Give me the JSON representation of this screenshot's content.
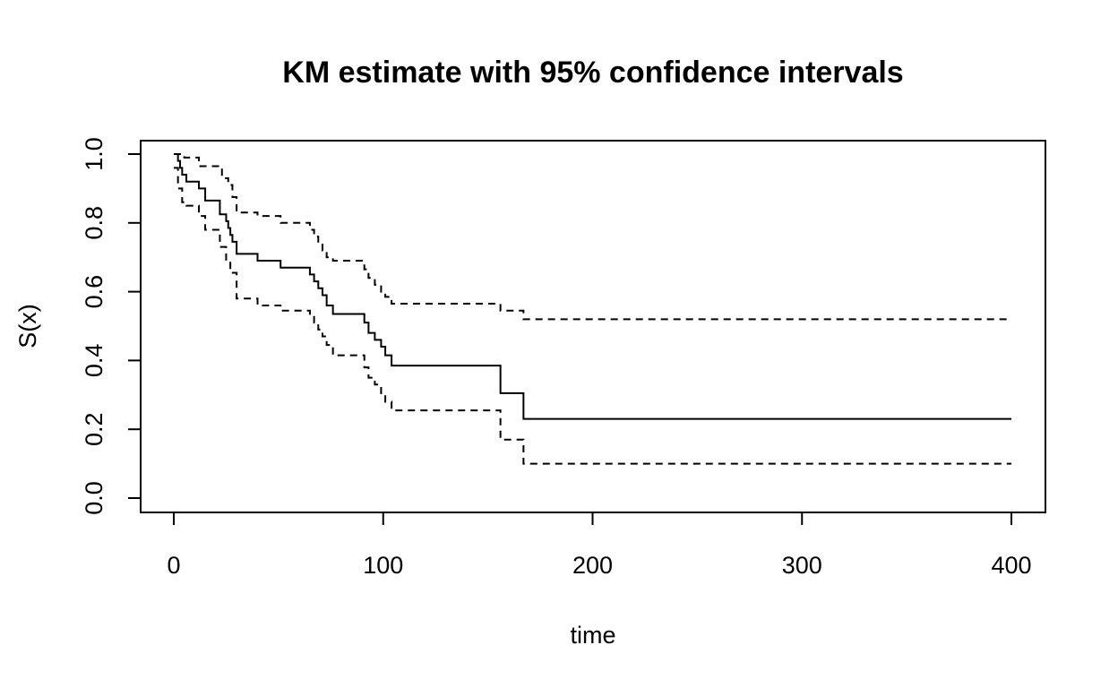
{
  "chart_data": {
    "type": "line",
    "title": "KM estimate with 95% confidence intervals",
    "xlabel": "time",
    "ylabel": "S(x)",
    "xlim": [
      0,
      400
    ],
    "ylim": [
      0,
      1
    ],
    "xticks": [
      0,
      100,
      200,
      300,
      400
    ],
    "xtick_labels": [
      "0",
      "100",
      "200",
      "300",
      "400"
    ],
    "yticks": [
      0,
      0.2,
      0.4,
      0.6,
      0.8,
      1.0
    ],
    "ytick_labels": [
      "0.0",
      "0.2",
      "0.4",
      "0.6",
      "0.8",
      "1.0"
    ],
    "grid": false,
    "legend": "none",
    "series": [
      {
        "line_style": "solid",
        "step": true,
        "x": [
          0,
          2,
          3,
          4,
          6,
          12,
          15,
          22,
          25,
          26,
          27,
          28,
          30,
          40,
          51,
          65,
          67,
          69,
          71,
          73,
          76,
          91,
          93,
          96,
          99,
          101,
          104,
          156,
          167,
          400
        ],
        "y": [
          1.0,
          0.98,
          0.96,
          0.94,
          0.92,
          0.9,
          0.865,
          0.825,
          0.805,
          0.785,
          0.765,
          0.745,
          0.71,
          0.69,
          0.67,
          0.65,
          0.63,
          0.61,
          0.59,
          0.56,
          0.535,
          0.51,
          0.48,
          0.46,
          0.44,
          0.415,
          0.385,
          0.305,
          0.23,
          0.23
        ]
      },
      {
        "line_style": "dashed",
        "step": true,
        "x": [
          0,
          5,
          12,
          23,
          26,
          28,
          30,
          40,
          51,
          65,
          67,
          69,
          71,
          73,
          76,
          91,
          93,
          96,
          99,
          101,
          104,
          156,
          167,
          400
        ],
        "y": [
          1.0,
          0.99,
          0.965,
          0.93,
          0.91,
          0.875,
          0.83,
          0.82,
          0.8,
          0.78,
          0.76,
          0.74,
          0.72,
          0.7,
          0.69,
          0.665,
          0.64,
          0.62,
          0.6,
          0.585,
          0.565,
          0.545,
          0.52,
          0.52
        ]
      },
      {
        "line_style": "dashed",
        "step": true,
        "x": [
          0,
          2,
          4,
          6,
          12,
          15,
          22,
          25,
          27,
          30,
          40,
          51,
          65,
          67,
          69,
          71,
          73,
          76,
          91,
          93,
          96,
          99,
          101,
          104,
          156,
          167,
          400
        ],
        "y": [
          0.96,
          0.9,
          0.86,
          0.85,
          0.82,
          0.78,
          0.73,
          0.69,
          0.655,
          0.58,
          0.56,
          0.545,
          0.53,
          0.51,
          0.49,
          0.47,
          0.445,
          0.415,
          0.38,
          0.35,
          0.33,
          0.305,
          0.28,
          0.255,
          0.17,
          0.1,
          0.1
        ]
      }
    ]
  }
}
